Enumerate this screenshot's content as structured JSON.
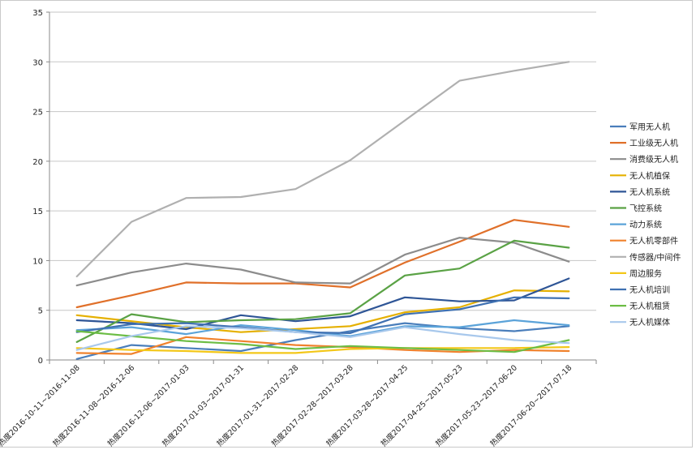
{
  "chart_data": {
    "type": "line",
    "title": "",
    "xlabel": "",
    "ylabel": "",
    "ylim": [
      0,
      35
    ],
    "yticks": [
      0,
      5,
      10,
      15,
      20,
      25,
      30,
      35
    ],
    "grid": "horizontal",
    "legend_position": "right",
    "categories": [
      "热度2016-10-11~2016-11-08",
      "热度2016-11-08~2016-12-06",
      "热度2016-12-06~2017-01-03",
      "热度2017-01-03~2017-01-31",
      "热度2017-01-31~2017-02-28",
      "热度2017-02-28~2017-03-28",
      "热度2017-03-28~2017-04-25",
      "热度2017-04-25~2017-05-23",
      "热度2017-05-23~2017-06-20",
      "热度2017-06-20~2017-07-18"
    ],
    "series": [
      {
        "name": "军用无人机",
        "color": "#4a7ebb",
        "values": [
          0.1,
          1.5,
          1.2,
          0.9,
          2.0,
          2.9,
          3.7,
          3.2,
          2.9,
          3.4
        ]
      },
      {
        "name": "工业级无人机",
        "color": "#e0702a",
        "values": [
          5.3,
          6.5,
          7.8,
          7.7,
          7.7,
          7.3,
          9.8,
          11.9,
          14.1,
          13.4
        ]
      },
      {
        "name": "消费级无人机",
        "color": "#8c8c8c",
        "values": [
          7.5,
          8.8,
          9.7,
          9.1,
          7.8,
          7.7,
          10.6,
          12.3,
          11.8,
          9.9
        ]
      },
      {
        "name": "无人机植保",
        "color": "#e5b000",
        "values": [
          4.5,
          3.9,
          3.3,
          2.8,
          3.1,
          3.4,
          4.8,
          5.3,
          7.0,
          6.9
        ]
      },
      {
        "name": "无人机系统",
        "color": "#2e5596",
        "values": [
          4.0,
          3.7,
          3.1,
          4.5,
          3.9,
          4.4,
          6.3,
          5.9,
          6.0,
          8.2
        ]
      },
      {
        "name": "飞控系统",
        "color": "#5aa245",
        "values": [
          1.8,
          4.6,
          3.8,
          4.0,
          4.1,
          4.7,
          8.5,
          9.2,
          12.0,
          11.3
        ]
      },
      {
        "name": "动力系统",
        "color": "#5ba3d9",
        "values": [
          3.0,
          3.3,
          2.6,
          3.5,
          3.0,
          2.4,
          3.4,
          3.3,
          4.0,
          3.5
        ]
      },
      {
        "name": "无人机零部件",
        "color": "#f0822d",
        "values": [
          0.7,
          0.6,
          2.3,
          1.9,
          1.5,
          1.3,
          1.0,
          0.8,
          1.0,
          0.9
        ]
      },
      {
        "name": "传感器/中间件",
        "color": "#b0b0b0",
        "values": [
          8.4,
          13.9,
          16.3,
          16.4,
          17.2,
          20.1,
          24.1,
          28.1,
          29.1,
          30.0
        ]
      },
      {
        "name": "周边服务",
        "color": "#f3c719",
        "values": [
          1.2,
          1.0,
          0.9,
          0.7,
          0.7,
          1.1,
          1.2,
          1.2,
          1.2,
          1.3
        ]
      },
      {
        "name": "无人机培训",
        "color": "#3f71b2",
        "values": [
          2.8,
          3.6,
          3.7,
          3.3,
          2.8,
          2.7,
          4.6,
          5.1,
          6.3,
          6.2
        ]
      },
      {
        "name": "无人机租赁",
        "color": "#6cbd45",
        "values": [
          2.9,
          2.4,
          1.9,
          1.6,
          1.1,
          1.4,
          1.2,
          1.0,
          0.8,
          2.0
        ]
      },
      {
        "name": "无人机媒体",
        "color": "#a8c8ec",
        "values": [
          1.0,
          2.4,
          3.4,
          3.2,
          2.8,
          2.3,
          3.3,
          2.6,
          2.0,
          1.7
        ]
      }
    ]
  }
}
